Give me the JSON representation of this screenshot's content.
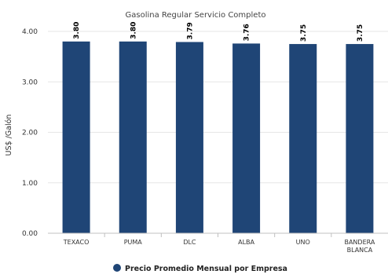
{
  "chart_data": {
    "type": "bar",
    "title": "",
    "subtitle": "Gasolina Regular Servicio Completo",
    "categories": [
      "TEXACO",
      "PUMA",
      "DLC",
      "ALBA",
      "UNO",
      "BANDERA BLANCA"
    ],
    "category_lines": [
      [
        "TEXACO"
      ],
      [
        "PUMA"
      ],
      [
        "DLC"
      ],
      [
        "ALBA"
      ],
      [
        "UNO"
      ],
      [
        "BANDERA",
        "BLANCA"
      ]
    ],
    "series": [
      {
        "name": "Precio Promedio Mensual por Empresa",
        "values": [
          3.8,
          3.8,
          3.79,
          3.76,
          3.75,
          3.75
        ]
      }
    ],
    "data_labels": [
      "3.80",
      "3.80",
      "3.79",
      "3.76",
      "3.75",
      "3.75"
    ],
    "xlabel": "",
    "ylabel": "US$ /Galón",
    "ylim": [
      0,
      4
    ],
    "yticks": [
      "0.00",
      "1.00",
      "2.00",
      "3.00",
      "4.00"
    ],
    "ytick_values": [
      0,
      1,
      2,
      3,
      4
    ],
    "grid": true,
    "legend": "bottom-center",
    "color": "#1f4576"
  }
}
